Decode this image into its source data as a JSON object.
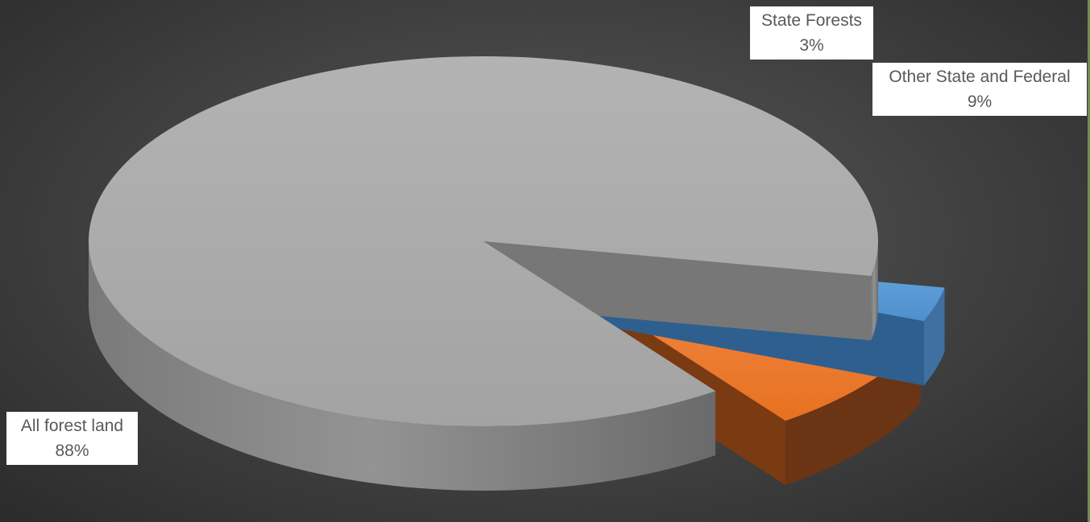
{
  "chart_data": {
    "type": "pie",
    "style": "3d-exploded",
    "title": "",
    "legend": "none",
    "slices": [
      {
        "label": "All forest land",
        "value": 88,
        "percent_label": "88%",
        "color": "#a8a8a8"
      },
      {
        "label": "State Forests",
        "value": 3,
        "percent_label": "3%",
        "color": "#5b9bd5"
      },
      {
        "label": "Other State and Federal",
        "value": 9,
        "percent_label": "9%",
        "color": "#ed7d31"
      }
    ]
  }
}
